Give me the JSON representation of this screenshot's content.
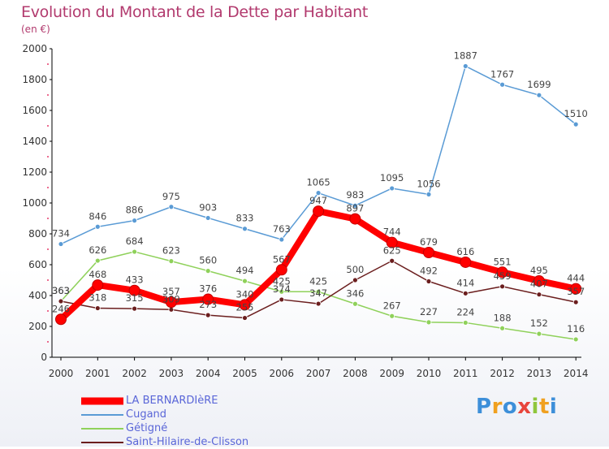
{
  "header": {
    "title": "Evolution du Montant de la Dette par Habitant",
    "subtitle": "(en €)"
  },
  "chart_data": {
    "type": "line",
    "x": [
      "2000",
      "2001",
      "2002",
      "2003",
      "2004",
      "2005",
      "2006",
      "2007",
      "2008",
      "2009",
      "2010",
      "2011",
      "2012",
      "2013",
      "2014"
    ],
    "ylim": [
      0,
      2000
    ],
    "yticks": [
      "0",
      "200",
      "400",
      "600",
      "800",
      "1000",
      "1200",
      "1400",
      "1600",
      "1800",
      "2000"
    ],
    "grid": false,
    "legend": "bottom-left",
    "series": [
      {
        "name": "Cugand",
        "color": "#5a9bd5",
        "values": [
          734,
          846,
          886,
          975,
          903,
          833,
          763,
          1065,
          983,
          1095,
          1056,
          1887,
          1767,
          1699,
          1510
        ],
        "labels": [
          "734",
          "846",
          "886",
          "975",
          "903",
          "833",
          "763",
          "1065",
          "983",
          "1095",
          "1056",
          "1887",
          "1767",
          "1699",
          "1510"
        ]
      },
      {
        "name": "Gétigné",
        "color": "#8fd15a",
        "values": [
          363,
          626,
          684,
          623,
          560,
          494,
          425,
          425,
          346,
          267,
          227,
          224,
          188,
          152,
          116
        ],
        "labels": [
          "363",
          "626",
          "684",
          "623",
          "560",
          "494",
          "425",
          "425",
          "346",
          "267",
          "227",
          "224",
          "188",
          "152",
          "116"
        ]
      },
      {
        "name": "Saint-Hilaire-de-Clisson",
        "color": "#6b1e1e",
        "values": [
          363,
          318,
          315,
          309,
          273,
          255,
          374,
          347,
          500,
          625,
          492,
          414,
          459,
          407,
          357
        ],
        "labels": [
          "363",
          "318",
          "315",
          "309",
          "273",
          "255",
          "374",
          "347",
          "500",
          "625",
          "492",
          "414",
          "459",
          "407",
          "357"
        ]
      },
      {
        "name": "LA BERNARDIèRE",
        "color": "#ff0000",
        "values": [
          246,
          468,
          433,
          357,
          376,
          340,
          567,
          947,
          897,
          744,
          679,
          616,
          551,
          495,
          444
        ],
        "labels": [
          "246",
          "468",
          "433",
          "357",
          "376",
          "340",
          "567",
          "947",
          "897",
          "744",
          "679",
          "616",
          "551",
          "495",
          "444"
        ]
      }
    ]
  },
  "legend": {
    "items": [
      {
        "name": "LA BERNARDIèRE",
        "color": "#ff0000",
        "width": 9
      },
      {
        "name": "Cugand",
        "color": "#5a9bd5",
        "width": 2
      },
      {
        "name": "Gétigné",
        "color": "#8fd15a",
        "width": 2
      },
      {
        "name": "Saint-Hilaire-de-Clisson",
        "color": "#6b1e1e",
        "width": 2
      }
    ]
  },
  "logo": {
    "text": "Proxiti"
  }
}
